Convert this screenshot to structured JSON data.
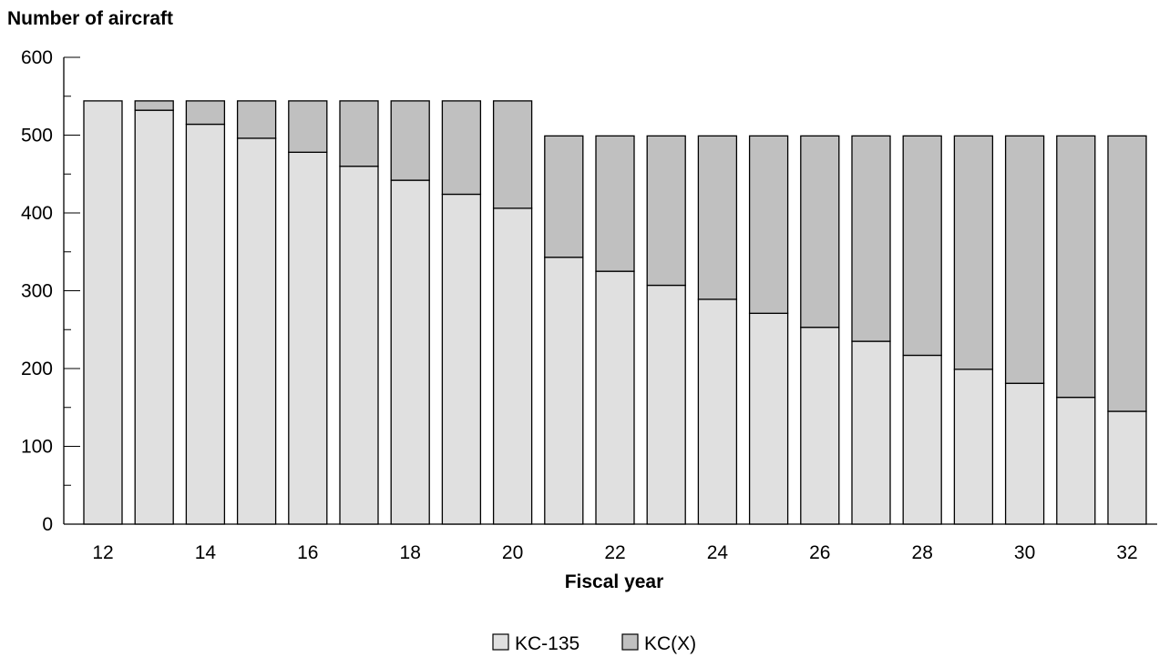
{
  "chart_data": {
    "type": "bar",
    "stacked": true,
    "title": "",
    "ylabel": "Number of aircraft",
    "xlabel": "Fiscal year",
    "ylim": [
      0,
      600
    ],
    "yticks": [
      0,
      100,
      200,
      300,
      400,
      500,
      600
    ],
    "categories": [
      "12",
      "13",
      "14",
      "15",
      "16",
      "17",
      "18",
      "19",
      "20",
      "21",
      "22",
      "23",
      "24",
      "25",
      "26",
      "27",
      "28",
      "29",
      "30",
      "31",
      "32"
    ],
    "xtick_labels": [
      "12",
      "14",
      "16",
      "18",
      "20",
      "22",
      "24",
      "26",
      "28",
      "30",
      "32"
    ],
    "series": [
      {
        "name": "KC-135",
        "color": "#e0e0e0",
        "values": [
          544,
          532,
          514,
          496,
          478,
          460,
          442,
          424,
          406,
          343,
          325,
          307,
          289,
          271,
          253,
          235,
          217,
          199,
          181,
          163,
          145
        ]
      },
      {
        "name": "KC(X)",
        "color": "#c0c0c0",
        "values": [
          0,
          12,
          30,
          48,
          66,
          84,
          102,
          120,
          138,
          156,
          174,
          192,
          210,
          228,
          246,
          264,
          282,
          300,
          318,
          336,
          354
        ]
      }
    ],
    "legend_position": "bottom-center",
    "grid": false
  }
}
